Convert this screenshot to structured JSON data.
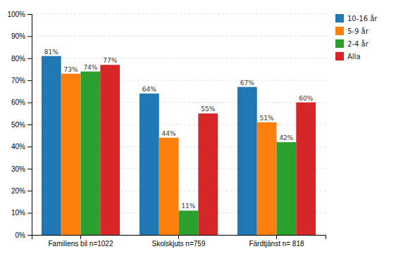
{
  "chart_data": {
    "type": "bar",
    "categories": [
      "Familiens bil n=1022",
      "Skolskjuts n=759",
      "Färdtjänst n= 818"
    ],
    "series": [
      {
        "name": "10-16 år",
        "values": [
          81,
          64,
          67
        ],
        "value_labels": [
          "81%",
          "64%",
          "67%"
        ]
      },
      {
        "name": "5-9 år",
        "values": [
          73,
          44,
          51
        ],
        "value_labels": [
          "73%",
          "44%",
          "51%"
        ]
      },
      {
        "name": "2-4 år",
        "values": [
          74,
          11,
          42
        ],
        "value_labels": [
          "74%",
          "11%",
          "42%"
        ]
      },
      {
        "name": "Alla",
        "values": [
          77,
          55,
          60
        ],
        "value_labels": [
          "77%",
          "55%",
          "60%"
        ]
      }
    ],
    "ylim": [
      0,
      100
    ],
    "yticks": [
      {
        "value": 0,
        "label": "0%"
      },
      {
        "value": 10,
        "label": "10%"
      },
      {
        "value": 20,
        "label": "20%"
      },
      {
        "value": 30,
        "label": "30%"
      },
      {
        "value": 40,
        "label": "40%"
      },
      {
        "value": 50,
        "label": "50%"
      },
      {
        "value": 60,
        "label": "60%"
      },
      {
        "value": 70,
        "label": "70%"
      },
      {
        "value": 80,
        "label": "80%"
      },
      {
        "value": 90,
        "label": "90%"
      },
      {
        "value": 100,
        "label": "100%"
      }
    ],
    "grid": true,
    "legend": "upper right",
    "data_labels": true
  }
}
